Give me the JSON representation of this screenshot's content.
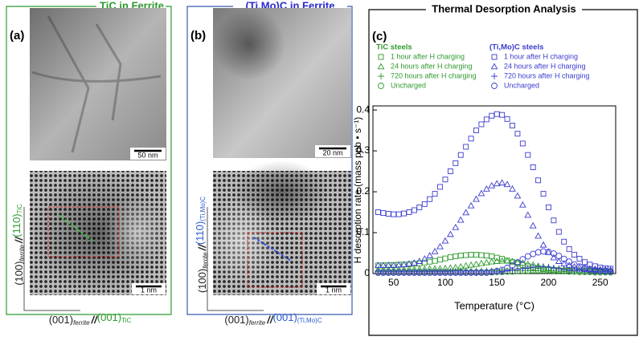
{
  "panels": [
    {
      "label": "(a)",
      "title": "TiC in Ferrite",
      "scale_top": "50 nm",
      "scale_bottom": "1 nm",
      "y_axis": [
        "(100)",
        "ferrite",
        "//",
        "(110)",
        "TiC"
      ],
      "x_axis": [
        "(001)",
        "ferrite",
        "//",
        "(001)",
        "TiC"
      ]
    },
    {
      "label": "(b)",
      "title": "(Ti,Mo)C in Ferrite",
      "scale_top": "20 nm",
      "scale_bottom": "1 nm",
      "y_axis": [
        "(100)",
        "ferrite",
        "//",
        "(110)",
        "(Ti,Mo)C"
      ],
      "x_axis": [
        "(001)",
        "ferrite",
        "//",
        "(001)",
        "(Ti,Mo)C"
      ]
    }
  ],
  "chart_data": {
    "type": "scatter",
    "panel_label": "(c)",
    "title": "Thermal Desorption Analysis",
    "x_label": "Temperature (°C)",
    "y_label": "H desorption rate (mass ppb • s⁻¹)",
    "legend_titles": [
      "TiC steels",
      "(Ti,Mo)C steels"
    ],
    "xlim": [
      30,
      265
    ],
    "xticks": [
      50,
      100,
      150,
      200,
      250
    ],
    "ylim": [
      0,
      0.41
    ],
    "yticks": [
      0,
      0.1,
      0.2,
      0.3,
      0.4
    ],
    "x": [
      35,
      40,
      45,
      50,
      55,
      60,
      65,
      70,
      75,
      80,
      85,
      90,
      95,
      100,
      105,
      110,
      115,
      120,
      125,
      130,
      135,
      140,
      145,
      150,
      155,
      160,
      165,
      170,
      175,
      180,
      185,
      190,
      195,
      200,
      205,
      210,
      215,
      220,
      225,
      230,
      235,
      240,
      245,
      250,
      255,
      260
    ],
    "series": [
      {
        "name": "1 hour after H charging",
        "color": "#2e9a2e",
        "marker": "square",
        "values": [
          0.02,
          0.02,
          0.021,
          0.021,
          0.022,
          0.022,
          0.023,
          0.024,
          0.025,
          0.027,
          0.029,
          0.031,
          0.034,
          0.037,
          0.04,
          0.042,
          0.044,
          0.045,
          0.046,
          0.046,
          0.045,
          0.044,
          0.042,
          0.039,
          0.036,
          0.032,
          0.028,
          0.024,
          0.021,
          0.018,
          0.015,
          0.013,
          0.011,
          0.01,
          0.009,
          0.008,
          0.007,
          0.007,
          0.006,
          0.006,
          0.006,
          0.005,
          0.005,
          0.005,
          0.005,
          0.005
        ]
      },
      {
        "name": "24 hours after H charging",
        "color": "#2e9a2e",
        "marker": "triangle",
        "values": [
          0.01,
          0.01,
          0.01,
          0.01,
          0.01,
          0.01,
          0.011,
          0.011,
          0.011,
          0.011,
          0.012,
          0.012,
          0.012,
          0.013,
          0.014,
          0.015,
          0.017,
          0.019,
          0.021,
          0.023,
          0.025,
          0.027,
          0.029,
          0.03,
          0.031,
          0.031,
          0.03,
          0.028,
          0.026,
          0.023,
          0.021,
          0.018,
          0.016,
          0.014,
          0.012,
          0.011,
          0.01,
          0.009,
          0.009,
          0.008,
          0.008,
          0.008,
          0.007,
          0.007,
          0.007,
          0.007
        ]
      },
      {
        "name": "720 hours after H charging",
        "color": "#2e9a2e",
        "marker": "plus",
        "values": [
          0.006,
          0.006,
          0.006,
          0.006,
          0.006,
          0.006,
          0.006,
          0.006,
          0.006,
          0.006,
          0.006,
          0.006,
          0.006,
          0.006,
          0.006,
          0.007,
          0.007,
          0.007,
          0.007,
          0.007,
          0.007,
          0.007,
          0.007,
          0.007,
          0.007,
          0.007,
          0.007,
          0.007,
          0.007,
          0.007,
          0.007,
          0.007,
          0.007,
          0.007,
          0.006,
          0.006,
          0.006,
          0.006,
          0.006,
          0.006,
          0.006,
          0.006,
          0.006,
          0.006,
          0.006,
          0.006
        ]
      },
      {
        "name": "Uncharged",
        "color": "#2e9a2e",
        "marker": "circle",
        "values": [
          0.003,
          0.003,
          0.003,
          0.003,
          0.003,
          0.003,
          0.003,
          0.003,
          0.003,
          0.003,
          0.003,
          0.003,
          0.003,
          0.003,
          0.003,
          0.003,
          0.003,
          0.003,
          0.003,
          0.003,
          0.003,
          0.003,
          0.003,
          0.004,
          0.004,
          0.005,
          0.005,
          0.006,
          0.007,
          0.007,
          0.008,
          0.008,
          0.008,
          0.008,
          0.007,
          0.007,
          0.006,
          0.005,
          0.005,
          0.004,
          0.004,
          0.004,
          0.003,
          0.003,
          0.003,
          0.003
        ]
      },
      {
        "name": "1 hour after H charging",
        "color": "#3a3ad0",
        "marker": "square",
        "values": [
          0.15,
          0.148,
          0.146,
          0.145,
          0.145,
          0.147,
          0.15,
          0.155,
          0.162,
          0.17,
          0.182,
          0.195,
          0.212,
          0.23,
          0.25,
          0.27,
          0.29,
          0.31,
          0.33,
          0.35,
          0.365,
          0.377,
          0.386,
          0.39,
          0.388,
          0.378,
          0.362,
          0.342,
          0.318,
          0.29,
          0.26,
          0.228,
          0.195,
          0.162,
          0.13,
          0.102,
          0.078,
          0.06,
          0.046,
          0.036,
          0.028,
          0.022,
          0.018,
          0.015,
          0.013,
          0.012
        ]
      },
      {
        "name": "24 hours after H charging",
        "color": "#3a3ad0",
        "marker": "triangle",
        "values": [
          0.02,
          0.02,
          0.02,
          0.02,
          0.021,
          0.022,
          0.024,
          0.026,
          0.03,
          0.036,
          0.044,
          0.054,
          0.066,
          0.08,
          0.096,
          0.113,
          0.131,
          0.149,
          0.166,
          0.182,
          0.196,
          0.207,
          0.215,
          0.22,
          0.222,
          0.218,
          0.207,
          0.19,
          0.168,
          0.143,
          0.117,
          0.092,
          0.07,
          0.052,
          0.039,
          0.03,
          0.024,
          0.02,
          0.017,
          0.015,
          0.013,
          0.012,
          0.011,
          0.01,
          0.01,
          0.009
        ]
      },
      {
        "name": "720 hours after H charging",
        "color": "#3a3ad0",
        "marker": "plus",
        "values": [
          0.004,
          0.004,
          0.004,
          0.004,
          0.004,
          0.004,
          0.004,
          0.004,
          0.004,
          0.004,
          0.004,
          0.004,
          0.004,
          0.004,
          0.004,
          0.004,
          0.004,
          0.004,
          0.004,
          0.004,
          0.004,
          0.004,
          0.004,
          0.004,
          0.005,
          0.006,
          0.008,
          0.01,
          0.012,
          0.014,
          0.016,
          0.017,
          0.017,
          0.016,
          0.014,
          0.012,
          0.01,
          0.008,
          0.007,
          0.006,
          0.005,
          0.005,
          0.004,
          0.004,
          0.004,
          0.004
        ]
      },
      {
        "name": "Uncharged",
        "color": "#3a3ad0",
        "marker": "circle",
        "values": [
          0.002,
          0.002,
          0.002,
          0.002,
          0.002,
          0.002,
          0.002,
          0.002,
          0.002,
          0.002,
          0.002,
          0.002,
          0.002,
          0.002,
          0.002,
          0.002,
          0.002,
          0.002,
          0.002,
          0.002,
          0.002,
          0.002,
          0.004,
          0.006,
          0.009,
          0.014,
          0.02,
          0.027,
          0.035,
          0.042,
          0.048,
          0.052,
          0.054,
          0.053,
          0.049,
          0.043,
          0.036,
          0.029,
          0.022,
          0.017,
          0.013,
          0.01,
          0.008,
          0.007,
          0.006,
          0.005
        ]
      }
    ]
  }
}
